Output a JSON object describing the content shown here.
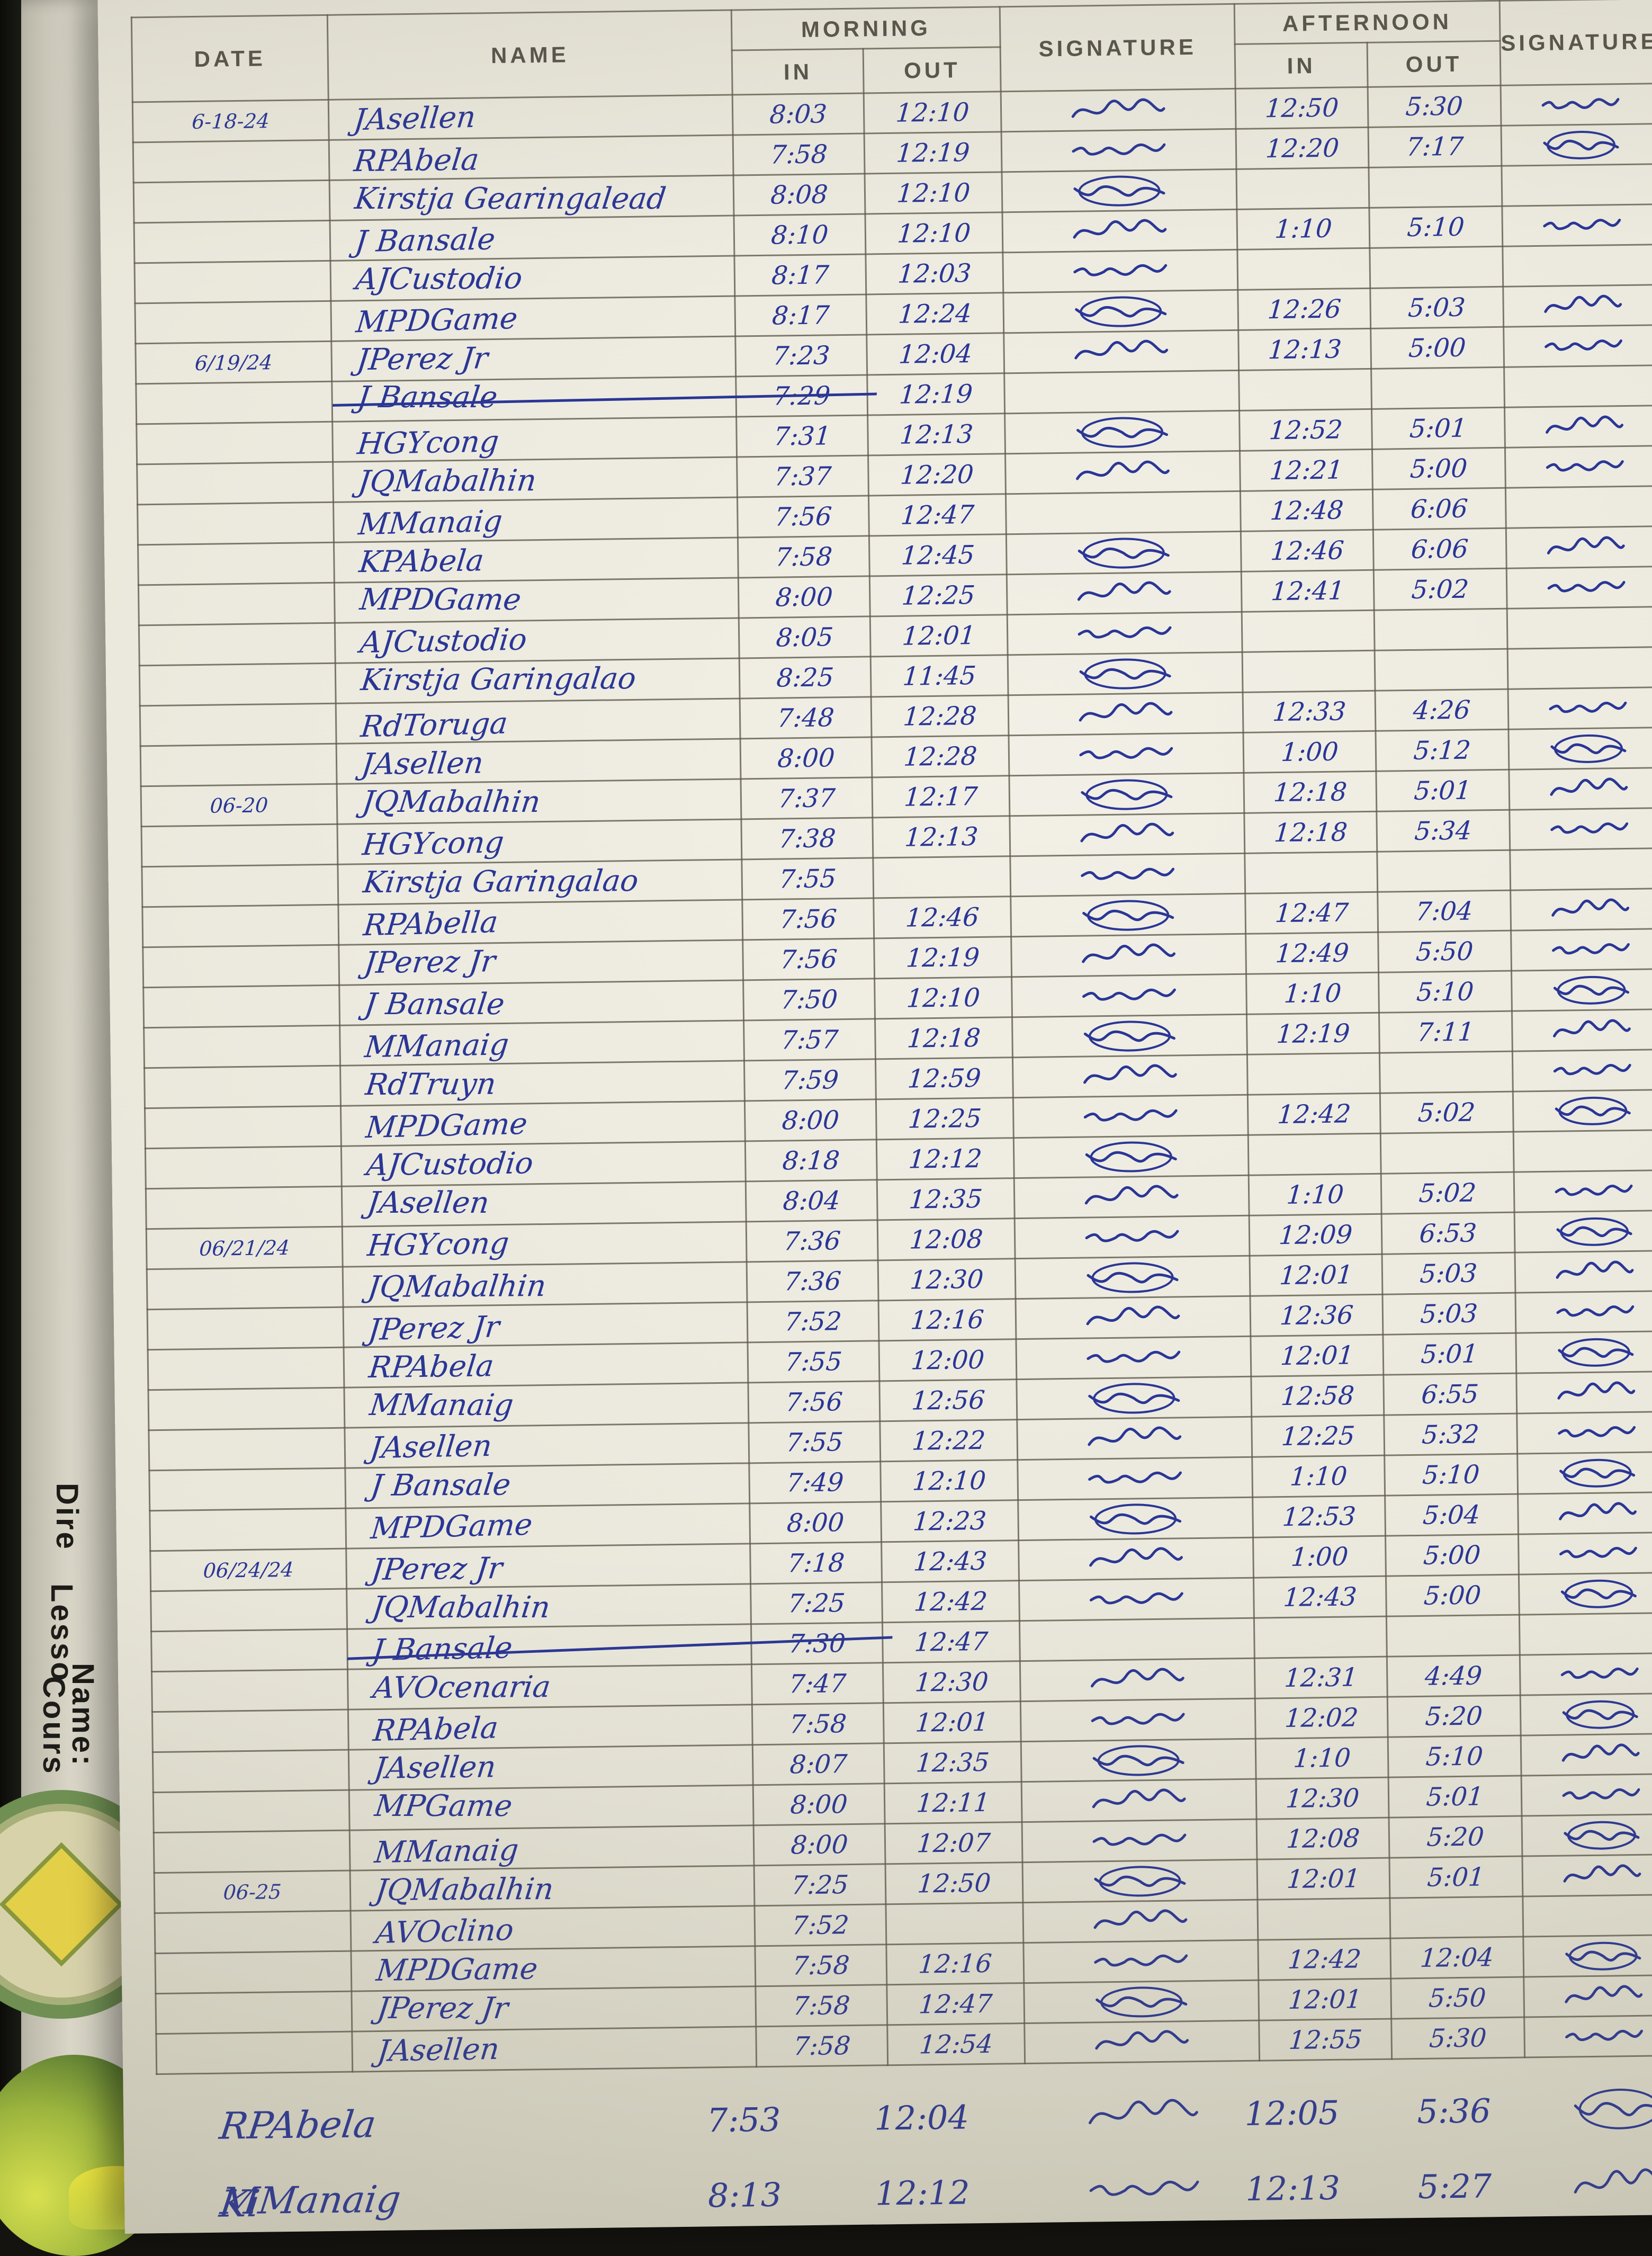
{
  "header": {
    "date": "DATE",
    "name": "NAME",
    "morning": "MORNING",
    "afternoon": "AFTERNOON",
    "in": "IN",
    "out": "OUT",
    "signature": "SIGNATURE"
  },
  "left_page": {
    "fragments": [
      "Dire",
      "Lesso",
      "Name:",
      "Cours"
    ]
  },
  "colors": {
    "ink": "#2a3696",
    "pencil": "#57544a",
    "paper": "#efede2"
  },
  "rows": [
    {
      "date": "6-18-24",
      "name": "JAsellen",
      "min": "8:03",
      "mout": "12:10",
      "msig": true,
      "ain": "12:50",
      "aout": "5:30",
      "asig": true,
      "struck": false
    },
    {
      "date": "",
      "name": "RPAbela",
      "min": "7:58",
      "mout": "12:19",
      "msig": true,
      "ain": "12:20",
      "aout": "7:17",
      "asig": true,
      "struck": false
    },
    {
      "date": "",
      "name": "Kirstja Gearingalead",
      "min": "8:08",
      "mout": "12:10",
      "msig": true,
      "ain": "",
      "aout": "",
      "asig": false,
      "struck": false
    },
    {
      "date": "",
      "name": "J Bansale",
      "min": "8:10",
      "mout": "12:10",
      "msig": true,
      "ain": "1:10",
      "aout": "5:10",
      "asig": true,
      "struck": false
    },
    {
      "date": "",
      "name": "AJCustodio",
      "min": "8:17",
      "mout": "12:03",
      "msig": true,
      "ain": "",
      "aout": "",
      "asig": false,
      "struck": false
    },
    {
      "date": "",
      "name": "MPDGame",
      "min": "8:17",
      "mout": "12:24",
      "msig": true,
      "ain": "12:26",
      "aout": "5:03",
      "asig": true,
      "struck": false
    },
    {
      "date": "6/19/24",
      "name": "JPerez Jr",
      "min": "7:23",
      "mout": "12:04",
      "msig": true,
      "ain": "12:13",
      "aout": "5:00",
      "asig": true,
      "struck": false
    },
    {
      "date": "",
      "name": "J Bansale",
      "min": "7:29",
      "mout": "12:19",
      "msig": false,
      "ain": "",
      "aout": "",
      "asig": false,
      "struck": true
    },
    {
      "date": "",
      "name": "HGYcong",
      "min": "7:31",
      "mout": "12:13",
      "msig": true,
      "ain": "12:52",
      "aout": "5:01",
      "asig": true,
      "struck": false
    },
    {
      "date": "",
      "name": "JQMabalhin",
      "min": "7:37",
      "mout": "12:20",
      "msig": true,
      "ain": "12:21",
      "aout": "5:00",
      "asig": true,
      "struck": false
    },
    {
      "date": "",
      "name": "MManaig",
      "min": "7:56",
      "mout": "12:47",
      "msig": false,
      "ain": "12:48",
      "aout": "6:06",
      "asig": false,
      "struck": false
    },
    {
      "date": "",
      "name": "KPAbela",
      "min": "7:58",
      "mout": "12:45",
      "msig": true,
      "ain": "12:46",
      "aout": "6:06",
      "asig": true,
      "struck": false
    },
    {
      "date": "",
      "name": "MPDGame",
      "min": "8:00",
      "mout": "12:25",
      "msig": true,
      "ain": "12:41",
      "aout": "5:02",
      "asig": true,
      "struck": false
    },
    {
      "date": "",
      "name": "AJCustodio",
      "min": "8:05",
      "mout": "12:01",
      "msig": true,
      "ain": "",
      "aout": "",
      "asig": false,
      "struck": false
    },
    {
      "date": "",
      "name": "Kirstja Garingalao",
      "min": "8:25",
      "mout": "11:45",
      "msig": true,
      "ain": "",
      "aout": "",
      "asig": false,
      "struck": false
    },
    {
      "date": "",
      "name": "RdToruga",
      "min": "7:48",
      "mout": "12:28",
      "msig": true,
      "ain": "12:33",
      "aout": "4:26",
      "asig": true,
      "struck": false
    },
    {
      "date": "",
      "name": "JAsellen",
      "min": "8:00",
      "mout": "12:28",
      "msig": true,
      "ain": "1:00",
      "aout": "5:12",
      "asig": true,
      "struck": false
    },
    {
      "date": "06-20",
      "name": "JQMabalhin",
      "min": "7:37",
      "mout": "12:17",
      "msig": true,
      "ain": "12:18",
      "aout": "5:01",
      "asig": true,
      "struck": false
    },
    {
      "date": "",
      "name": "HGYcong",
      "min": "7:38",
      "mout": "12:13",
      "msig": true,
      "ain": "12:18",
      "aout": "5:34",
      "asig": true,
      "struck": false
    },
    {
      "date": "",
      "name": "Kirstja Garingalao",
      "min": "7:55",
      "mout": "",
      "msig": true,
      "ain": "",
      "aout": "",
      "asig": false,
      "struck": false
    },
    {
      "date": "",
      "name": "RPAbella",
      "min": "7:56",
      "mout": "12:46",
      "msig": true,
      "ain": "12:47",
      "aout": "7:04",
      "asig": true,
      "struck": false
    },
    {
      "date": "",
      "name": "JPerez Jr",
      "min": "7:56",
      "mout": "12:19",
      "msig": true,
      "ain": "12:49",
      "aout": "5:50",
      "asig": true,
      "struck": false
    },
    {
      "date": "",
      "name": "J Bansale",
      "min": "7:50",
      "mout": "12:10",
      "msig": true,
      "ain": "1:10",
      "aout": "5:10",
      "asig": true,
      "struck": false
    },
    {
      "date": "",
      "name": "MManaig",
      "min": "7:57",
      "mout": "12:18",
      "msig": true,
      "ain": "12:19",
      "aout": "7:11",
      "asig": true,
      "struck": false
    },
    {
      "date": "",
      "name": "RdTruyn",
      "min": "7:59",
      "mout": "12:59",
      "msig": true,
      "ain": "",
      "aout": "",
      "asig": true,
      "struck": false
    },
    {
      "date": "",
      "name": "MPDGame",
      "min": "8:00",
      "mout": "12:25",
      "msig": true,
      "ain": "12:42",
      "aout": "5:02",
      "asig": true,
      "struck": false
    },
    {
      "date": "",
      "name": "AJCustodio",
      "min": "8:18",
      "mout": "12:12",
      "msig": true,
      "ain": "",
      "aout": "",
      "asig": false,
      "struck": false
    },
    {
      "date": "",
      "name": "JAsellen",
      "min": "8:04",
      "mout": "12:35",
      "msig": true,
      "ain": "1:10",
      "aout": "5:02",
      "asig": true,
      "struck": false
    },
    {
      "date": "06/21/24",
      "name": "HGYcong",
      "min": "7:36",
      "mout": "12:08",
      "msig": true,
      "ain": "12:09",
      "aout": "6:53",
      "asig": true,
      "struck": false
    },
    {
      "date": "",
      "name": "JQMabalhin",
      "min": "7:36",
      "mout": "12:30",
      "msig": true,
      "ain": "12:01",
      "aout": "5:03",
      "asig": true,
      "struck": false
    },
    {
      "date": "",
      "name": "JPerez Jr",
      "min": "7:52",
      "mout": "12:16",
      "msig": true,
      "ain": "12:36",
      "aout": "5:03",
      "asig": true,
      "struck": false
    },
    {
      "date": "",
      "name": "RPAbela",
      "min": "7:55",
      "mout": "12:00",
      "msig": true,
      "ain": "12:01",
      "aout": "5:01",
      "asig": true,
      "struck": false
    },
    {
      "date": "",
      "name": "MManaig",
      "min": "7:56",
      "mout": "12:56",
      "msig": true,
      "ain": "12:58",
      "aout": "6:55",
      "asig": true,
      "struck": false
    },
    {
      "date": "",
      "name": "JAsellen",
      "min": "7:55",
      "mout": "12:22",
      "msig": true,
      "ain": "12:25",
      "aout": "5:32",
      "asig": true,
      "struck": false
    },
    {
      "date": "",
      "name": "J Bansale",
      "min": "7:49",
      "mout": "12:10",
      "msig": true,
      "ain": "1:10",
      "aout": "5:10",
      "asig": true,
      "struck": false
    },
    {
      "date": "",
      "name": "MPDGame",
      "min": "8:00",
      "mout": "12:23",
      "msig": true,
      "ain": "12:53",
      "aout": "5:04",
      "asig": true,
      "struck": false
    },
    {
      "date": "06/24/24",
      "name": "JPerez Jr",
      "min": "7:18",
      "mout": "12:43",
      "msig": true,
      "ain": "1:00",
      "aout": "5:00",
      "asig": true,
      "struck": false
    },
    {
      "date": "",
      "name": "JQMabalhin",
      "min": "7:25",
      "mout": "12:42",
      "msig": true,
      "ain": "12:43",
      "aout": "5:00",
      "asig": true,
      "struck": false
    },
    {
      "date": "",
      "name": "J Bansale",
      "min": "7:30",
      "mout": "12:47",
      "msig": false,
      "ain": "",
      "aout": "",
      "asig": false,
      "struck": true
    },
    {
      "date": "",
      "name": "AVOcenaria",
      "min": "7:47",
      "mout": "12:30",
      "msig": true,
      "ain": "12:31",
      "aout": "4:49",
      "asig": true,
      "struck": false
    },
    {
      "date": "",
      "name": "RPAbela",
      "min": "7:58",
      "mout": "12:01",
      "msig": true,
      "ain": "12:02",
      "aout": "5:20",
      "asig": true,
      "struck": false
    },
    {
      "date": "",
      "name": "JAsellen",
      "min": "8:07",
      "mout": "12:35",
      "msig": true,
      "ain": "1:10",
      "aout": "5:10",
      "asig": true,
      "struck": false
    },
    {
      "date": "",
      "name": "MPGame",
      "min": "8:00",
      "mout": "12:11",
      "msig": true,
      "ain": "12:30",
      "aout": "5:01",
      "asig": true,
      "struck": false
    },
    {
      "date": "",
      "name": "MManaig",
      "min": "8:00",
      "mout": "12:07",
      "msig": true,
      "ain": "12:08",
      "aout": "5:20",
      "asig": true,
      "struck": false
    },
    {
      "date": "06-25",
      "name": "JQMabalhin",
      "min": "7:25",
      "mout": "12:50",
      "msig": true,
      "ain": "12:01",
      "aout": "5:01",
      "asig": true,
      "struck": false
    },
    {
      "date": "",
      "name": "AVOclino",
      "min": "7:52",
      "mout": "",
      "msig": true,
      "ain": "",
      "aout": "",
      "asig": false,
      "struck": false
    },
    {
      "date": "",
      "name": "MPDGame",
      "min": "7:58",
      "mout": "12:16",
      "msig": true,
      "ain": "12:42",
      "aout": "12:04",
      "asig": true,
      "struck": false
    },
    {
      "date": "",
      "name": "JPerez Jr",
      "min": "7:58",
      "mout": "12:47",
      "msig": true,
      "ain": "12:01",
      "aout": "5:50",
      "asig": true,
      "struck": false
    },
    {
      "date": "",
      "name": "JAsellen",
      "min": "7:58",
      "mout": "12:54",
      "msig": true,
      "ain": "12:55",
      "aout": "5:30",
      "asig": true,
      "struck": false
    }
  ],
  "footer_rows": [
    {
      "name": "RPAbela",
      "min": "7:53",
      "mout": "12:04",
      "msig": true,
      "ain": "12:05",
      "aout": "5:36",
      "asig": true
    },
    {
      "name": "MManaig",
      "min": "8:13",
      "mout": "12:12",
      "msig": true,
      "ain": "12:13",
      "aout": "5:27",
      "asig": true
    }
  ],
  "partial_bottom_text": "Ki"
}
